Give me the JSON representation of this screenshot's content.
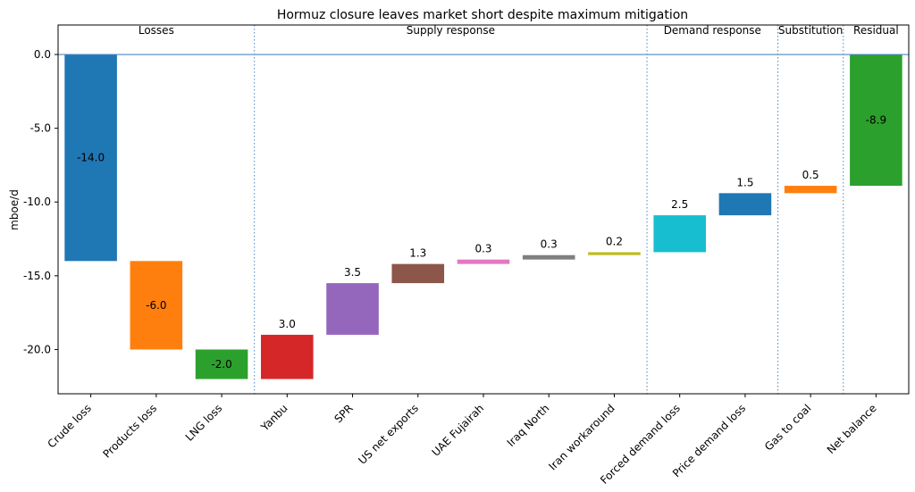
{
  "chart_data": {
    "type": "bar",
    "subtype": "waterfall",
    "title": "Hormuz closure leaves market short despite maximum mitigation",
    "xlabel": "",
    "ylabel": "mboe/d",
    "ylim": [
      -23,
      2
    ],
    "yticks": [
      0,
      -5,
      -10,
      -15,
      -20
    ],
    "ytick_labels": [
      "0.0",
      "-5.0",
      "-10.0",
      "-15.0",
      "-20.0"
    ],
    "grid": false,
    "legend": "none",
    "zero_line_color": "#4a86c5",
    "bars": [
      {
        "category": "Crude loss",
        "start": 0,
        "end": -14.0,
        "label": "-14.0",
        "label_pos": "inside",
        "color": "#1f77b4"
      },
      {
        "category": "Products loss",
        "start": -14.0,
        "end": -20.0,
        "label": "-6.0",
        "label_pos": "inside",
        "color": "#ff7f0e"
      },
      {
        "category": "LNG loss",
        "start": -20.0,
        "end": -22.0,
        "label": "-2.0",
        "label_pos": "inside",
        "color": "#2ca02c"
      },
      {
        "category": "Yanbu",
        "start": -22.0,
        "end": -19.0,
        "label": "3.0",
        "label_pos": "above",
        "color": "#d62728"
      },
      {
        "category": "SPR",
        "start": -19.0,
        "end": -15.5,
        "label": "3.5",
        "label_pos": "above",
        "color": "#9467bd"
      },
      {
        "category": "US net exports",
        "start": -15.5,
        "end": -14.2,
        "label": "1.3",
        "label_pos": "above",
        "color": "#8c564b"
      },
      {
        "category": "UAE Fujairah",
        "start": -14.2,
        "end": -13.9,
        "label": "0.3",
        "label_pos": "above",
        "color": "#e377c2"
      },
      {
        "category": "Iraq North",
        "start": -13.9,
        "end": -13.6,
        "label": "0.3",
        "label_pos": "above",
        "color": "#7f7f7f"
      },
      {
        "category": "Iran workaround",
        "start": -13.6,
        "end": -13.4,
        "label": "0.2",
        "label_pos": "above",
        "color": "#bcbd22"
      },
      {
        "category": "Forced demand loss",
        "start": -13.4,
        "end": -10.9,
        "label": "2.5",
        "label_pos": "above",
        "color": "#17becf"
      },
      {
        "category": "Price demand loss",
        "start": -10.9,
        "end": -9.4,
        "label": "1.5",
        "label_pos": "above",
        "color": "#1f77b4"
      },
      {
        "category": "Gas to coal",
        "start": -9.4,
        "end": -8.9,
        "label": "0.5",
        "label_pos": "above",
        "color": "#ff7f0e"
      },
      {
        "category": "Net balance",
        "start": 0,
        "end": -8.9,
        "label": "-8.9",
        "label_pos": "inside",
        "color": "#2ca02c"
      }
    ],
    "groups": [
      {
        "label": "Losses",
        "from": 0,
        "to": 2
      },
      {
        "label": "Supply response",
        "from": 3,
        "to": 8
      },
      {
        "label": "Demand response",
        "from": 9,
        "to": 10
      },
      {
        "label": "Substitution",
        "from": 11,
        "to": 11
      },
      {
        "label": "Residual",
        "from": 12,
        "to": 12
      }
    ],
    "separator_color": "#4a86c5"
  }
}
